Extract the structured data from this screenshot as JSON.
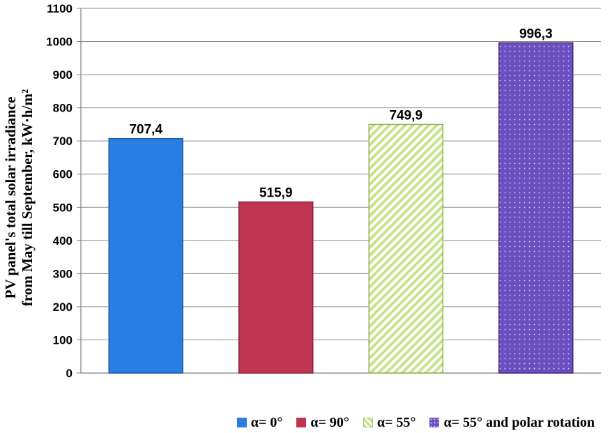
{
  "chart_data": {
    "type": "bar",
    "categories": [
      "α= 0°",
      "α= 90°",
      "α= 55°",
      "α= 55° and polar rotation"
    ],
    "values": [
      707.4,
      515.9,
      749.9,
      996.3
    ],
    "data_labels": [
      "707,4",
      "515,9",
      "749,9",
      "996,3"
    ],
    "ylabel_lines": [
      "PV panel's total solar irradiance",
      "from May till September, kW·h/m²"
    ],
    "xlabel": "",
    "ylim": [
      0,
      1100
    ],
    "yticks": [
      0,
      100,
      200,
      300,
      400,
      500,
      600,
      700,
      800,
      900,
      1000,
      1100
    ],
    "grid": true,
    "legend_position": "bottom",
    "series_styles": [
      {
        "fill": "#2a7de1",
        "pattern": "solid"
      },
      {
        "fill": "#c0354f",
        "pattern": "solid"
      },
      {
        "fill": "#c6e38a",
        "pattern": "diagonal-stripes"
      },
      {
        "fill": "#6a4fbf",
        "pattern": "dots"
      }
    ]
  },
  "legend": {
    "items": [
      {
        "label": "α= 0°",
        "icon": "solid-blue-square"
      },
      {
        "label": "α= 90°",
        "icon": "solid-red-square"
      },
      {
        "label": "α= 55°",
        "icon": "striped-green-square"
      },
      {
        "label": "α= 55° and polar rotation",
        "icon": "dotted-purple-square"
      }
    ]
  }
}
